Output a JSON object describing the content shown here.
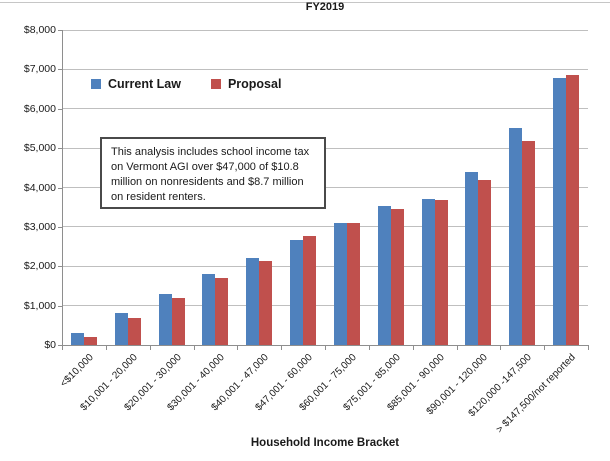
{
  "title": "FY2019",
  "chart_data": {
    "type": "bar",
    "title": "FY2019",
    "xlabel": "Household Income Bracket",
    "ylabel": "",
    "ylim": [
      0,
      8000
    ],
    "ytick_step": 1000,
    "ytick_labels": [
      "$0",
      "$1,000",
      "$2,000",
      "$3,000",
      "$4,000",
      "$5,000",
      "$6,000",
      "$7,000",
      "$8,000"
    ],
    "grid": true,
    "legend_position": "inside-top-left",
    "categories": [
      "<$10,000",
      "$10,001 - 20,000",
      "$20,001 - 30,000",
      "$30,001 - 40,000",
      "$40,001 - 47,000",
      "$47,001 - 60,000",
      "$60,001 - 75,000",
      "$75,001 - 85,000",
      "$85,001 - 90,000",
      "$90,001 - 120,000",
      "$120,000 -147,500",
      "> $147,500/not reported"
    ],
    "series": [
      {
        "name": "Current Law",
        "color": "#4F81BD",
        "values": [
          300,
          800,
          1300,
          1800,
          2200,
          2660,
          3110,
          3520,
          3720,
          4400,
          5520,
          6780
        ]
      },
      {
        "name": "Proposal",
        "color": "#C0504D",
        "values": [
          200,
          675,
          1200,
          1700,
          2130,
          2780,
          3100,
          3460,
          3680,
          4200,
          5180,
          6860
        ]
      }
    ],
    "annotation": "This analysis includes school income tax on Vermont AGI over $47,000 of $10.8 million on nonresidents and $8.7 million on resident renters."
  },
  "colors": {
    "bar_blue": "#4F81BD",
    "bar_red": "#C0504D",
    "gridline": "#BFBFBF",
    "axis": "#8E8E8E",
    "text": "#1A1A1A"
  }
}
